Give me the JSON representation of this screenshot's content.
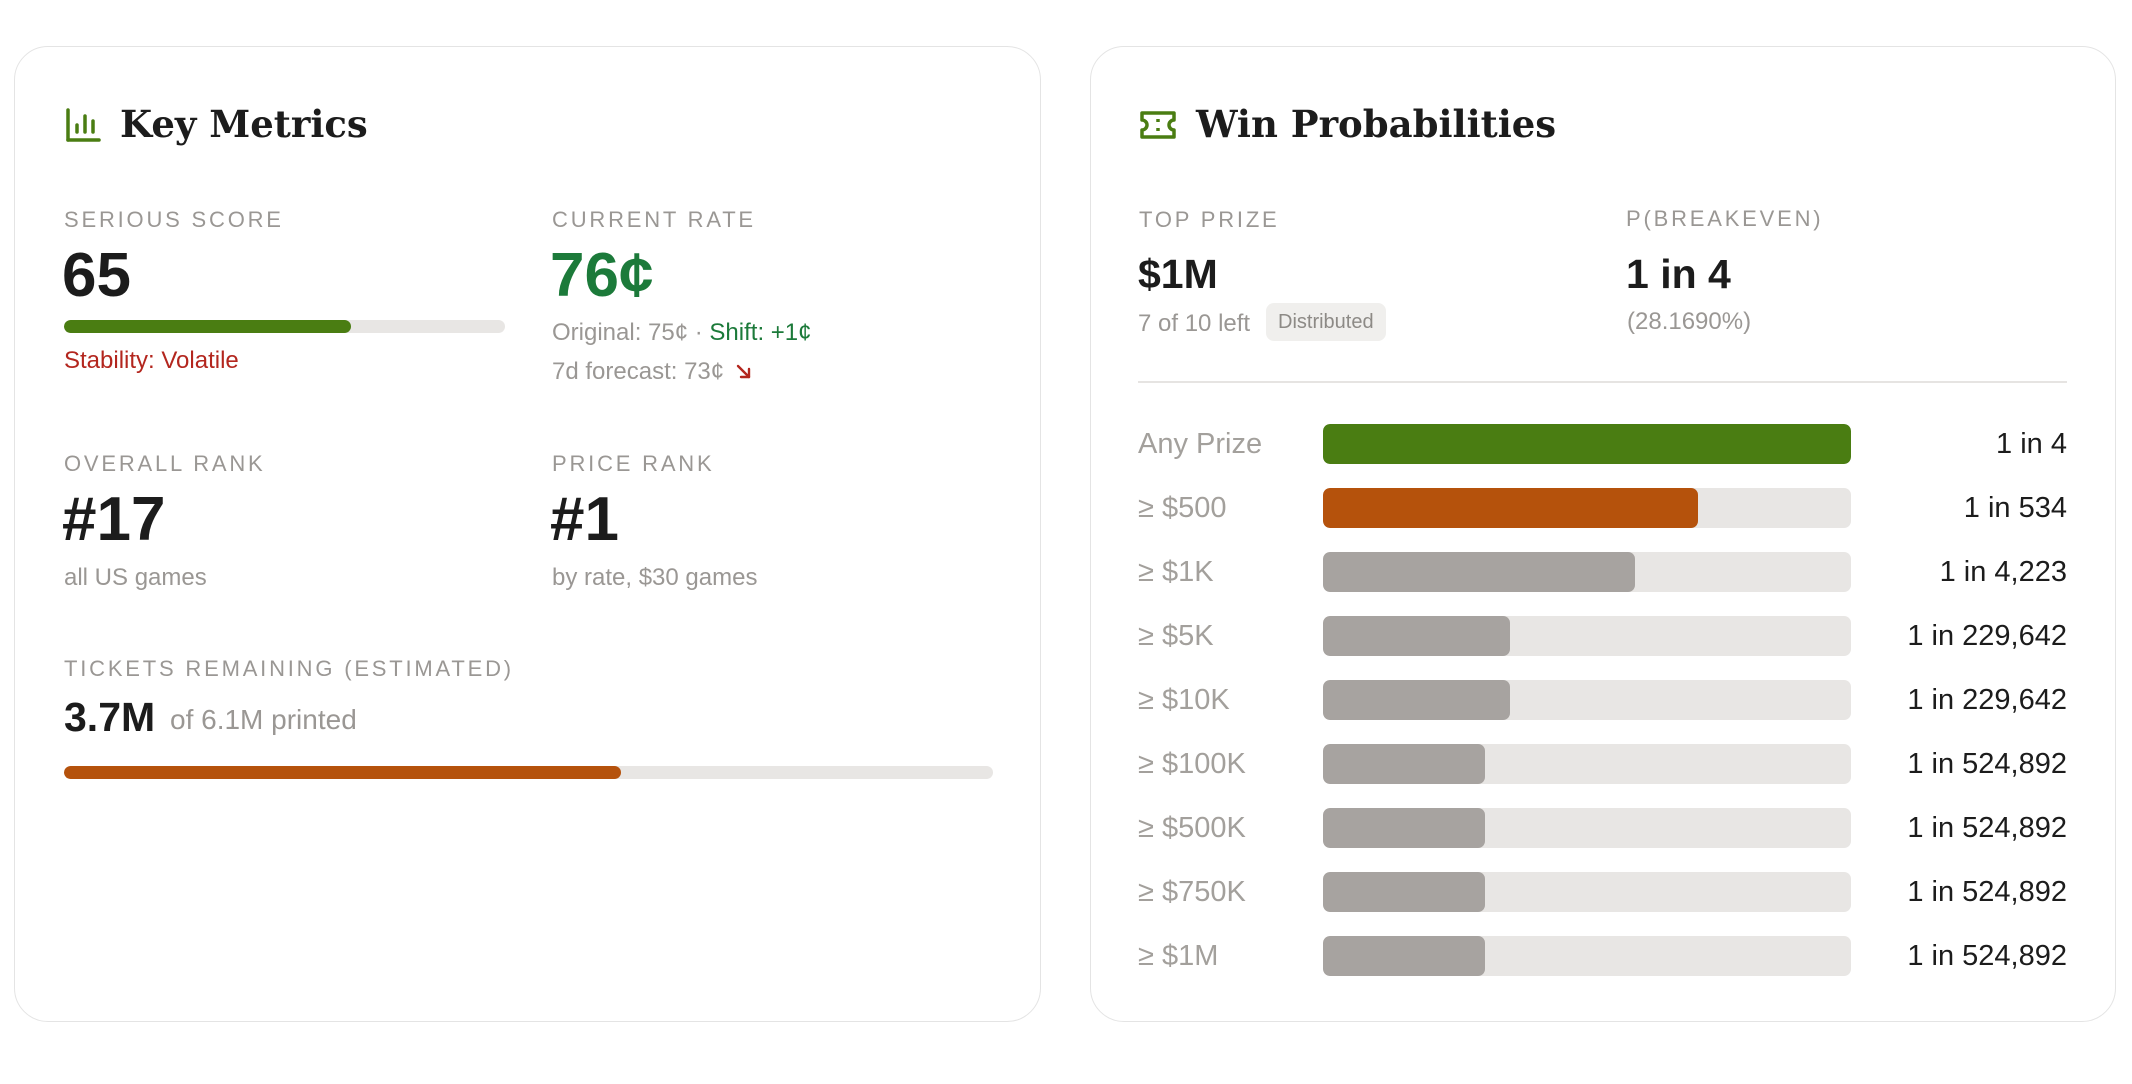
{
  "colors": {
    "green": "#4a7d12",
    "rate_green": "#1c7a3a",
    "orange": "#b5520c",
    "red": "#b3261e",
    "gray_bar": "#a7a3a0",
    "track": "#e8e6e4"
  },
  "key_metrics": {
    "title": "Key Metrics",
    "icon": "bar-chart-icon",
    "serious_score": {
      "label": "SERIOUS SCORE",
      "value": "65",
      "progress": 0.65,
      "stability": "Stability: Volatile"
    },
    "current_rate": {
      "label": "CURRENT RATE",
      "value": "76¢",
      "original": "Original: 75¢ ·",
      "shift": "Shift: +1¢",
      "forecast": "7d forecast: 73¢",
      "trend_icon": "arrow-down-right-icon"
    },
    "overall_rank": {
      "label": "OVERALL RANK",
      "value": "#17",
      "sub": "all US games"
    },
    "price_rank": {
      "label": "PRICE RANK",
      "value": "#1",
      "sub": "by rate, $30 games"
    },
    "tickets": {
      "label": "TICKETS REMAINING (ESTIMATED)",
      "value": "3.7M",
      "sub": "of 6.1M printed",
      "progress": 0.6
    }
  },
  "win_probabilities": {
    "title": "Win Probabilities",
    "icon": "ticket-icon",
    "top_prize": {
      "label": "TOP PRIZE",
      "value": "$1M",
      "sub": "7 of 10 left",
      "badge": "Distributed"
    },
    "breakeven": {
      "label": "P(BREAKEVEN)",
      "value": "1 in 4",
      "sub": "(28.1690%)"
    },
    "rows": [
      {
        "label": "Any Prize",
        "odds": "1 in 4",
        "fill": 1.0,
        "color": "#4a7d12"
      },
      {
        "label": "≥ $500",
        "odds": "1 in 534",
        "fill": 0.71,
        "color": "#b5520c"
      },
      {
        "label": "≥ $1K",
        "odds": "1 in 4,223",
        "fill": 0.59,
        "color": "#a7a3a0"
      },
      {
        "label": "≥ $5K",
        "odds": "1 in 229,642",
        "fill": 0.355,
        "color": "#a7a3a0"
      },
      {
        "label": "≥ $10K",
        "odds": "1 in 229,642",
        "fill": 0.355,
        "color": "#a7a3a0"
      },
      {
        "label": "≥ $100K",
        "odds": "1 in 524,892",
        "fill": 0.307,
        "color": "#a7a3a0"
      },
      {
        "label": "≥ $500K",
        "odds": "1 in 524,892",
        "fill": 0.307,
        "color": "#a7a3a0"
      },
      {
        "label": "≥ $750K",
        "odds": "1 in 524,892",
        "fill": 0.307,
        "color": "#a7a3a0"
      },
      {
        "label": "≥ $1M",
        "odds": "1 in 524,892",
        "fill": 0.307,
        "color": "#a7a3a0"
      }
    ]
  }
}
